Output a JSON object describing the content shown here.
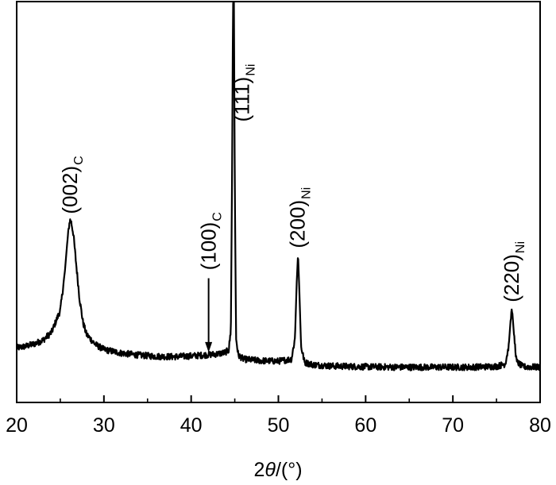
{
  "chart_data": {
    "type": "line",
    "xlabel": {
      "prefix": "2",
      "theta": "θ",
      "suffix": "/(°)"
    },
    "ylabel": "",
    "xlim": [
      20,
      80
    ],
    "ylim": [
      0,
      100
    ],
    "y_ticks_labeled": false,
    "grid": false,
    "series": [
      {
        "color": "#000000",
        "points": [
          [
            20,
            13.6
          ],
          [
            21,
            14.0
          ],
          [
            22,
            14.6
          ],
          [
            23,
            15.5
          ],
          [
            24,
            17.5
          ],
          [
            25,
            23.0
          ],
          [
            25.5,
            32.0
          ],
          [
            25.8,
            40.0
          ],
          [
            26.0,
            44.0
          ],
          [
            26.1,
            45.5
          ],
          [
            26.25,
            45.0
          ],
          [
            26.5,
            42.0
          ],
          [
            26.8,
            35.0
          ],
          [
            27.2,
            26.0
          ],
          [
            27.6,
            20.0
          ],
          [
            28.0,
            17.0
          ],
          [
            29,
            14.5
          ],
          [
            30,
            13.2
          ],
          [
            32,
            12.3
          ],
          [
            34,
            11.8
          ],
          [
            36,
            11.5
          ],
          [
            38,
            11.4
          ],
          [
            40,
            11.6
          ],
          [
            42,
            11.9
          ],
          [
            43,
            12.1
          ],
          [
            43.8,
            12.4
          ],
          [
            44.3,
            13.0
          ],
          [
            44.55,
            18.0
          ],
          [
            44.7,
            60.0
          ],
          [
            44.8,
            100.0
          ],
          [
            44.9,
            100.0
          ],
          [
            45.0,
            55.0
          ],
          [
            45.15,
            16.0
          ],
          [
            45.4,
            11.8
          ],
          [
            46,
            10.8
          ],
          [
            48,
            10.4
          ],
          [
            50,
            10.3
          ],
          [
            51.5,
            10.8
          ],
          [
            51.9,
            16.0
          ],
          [
            52.1,
            30.0
          ],
          [
            52.25,
            37.0
          ],
          [
            52.4,
            28.0
          ],
          [
            52.6,
            14.0
          ],
          [
            53,
            10.0
          ],
          [
            54,
            9.4
          ],
          [
            56,
            9.1
          ],
          [
            60,
            8.9
          ],
          [
            64,
            8.8
          ],
          [
            68,
            8.8
          ],
          [
            72,
            8.8
          ],
          [
            75,
            9.0
          ],
          [
            76.0,
            9.6
          ],
          [
            76.4,
            14.0
          ],
          [
            76.65,
            21.5
          ],
          [
            76.8,
            23.0
          ],
          [
            77.0,
            17.0
          ],
          [
            77.3,
            10.2
          ],
          [
            78,
            8.9
          ],
          [
            80,
            8.8
          ]
        ]
      }
    ],
    "x_ticks": [
      {
        "value": 20,
        "label": "20"
      },
      {
        "value": 30,
        "label": "30"
      },
      {
        "value": 40,
        "label": "40"
      },
      {
        "value": 50,
        "label": "50"
      },
      {
        "value": 60,
        "label": "60"
      },
      {
        "value": 70,
        "label": "70"
      },
      {
        "value": 80,
        "label": "80"
      }
    ],
    "annotations": [
      {
        "main": "(002)",
        "sub": "C",
        "x": 26.1,
        "y": 47.0
      },
      {
        "main": "(100)",
        "sub": "C",
        "x": 42.0,
        "y": 33.0,
        "arrow": {
          "from_y": 31.0,
          "to_y": 12.5
        }
      },
      {
        "main": "(111)",
        "sub": "Ni",
        "x": 45.8,
        "y": 70.0
      },
      {
        "main": "(200)",
        "sub": "Ni",
        "x": 52.2,
        "y": 38.5
      },
      {
        "main": "(220)",
        "sub": "Ni",
        "x": 76.7,
        "y": 25.0
      }
    ]
  }
}
